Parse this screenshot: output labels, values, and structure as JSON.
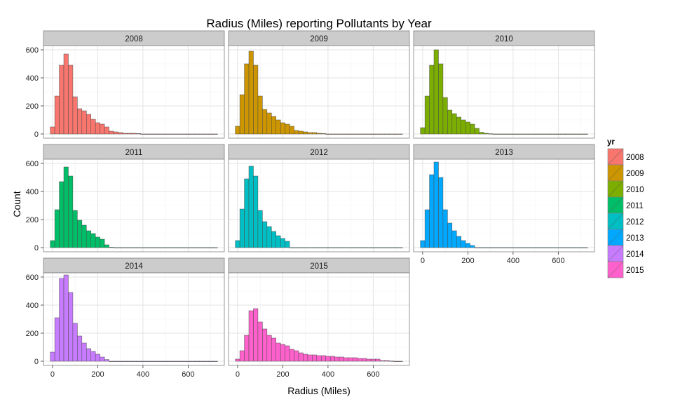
{
  "chart_data": {
    "type": "bar",
    "title": "Radius (Miles) reporting Pollutants by Year",
    "xlabel": "Radius (Miles)",
    "ylabel": "Count",
    "xlim": [
      -40,
      760
    ],
    "ylim": [
      -30,
      630
    ],
    "x_ticks": [
      0,
      200,
      400,
      600
    ],
    "y_ticks": [
      0,
      200,
      400,
      600
    ],
    "bin_width": 20,
    "bin_start": 0,
    "grid": true,
    "legend": {
      "title": "yr",
      "position": "right"
    },
    "panels": [
      {
        "label": "2008",
        "color": "#F8766D",
        "values": [
          50,
          270,
          490,
          570,
          490,
          265,
          180,
          165,
          140,
          105,
          80,
          70,
          50,
          20,
          15,
          10,
          5,
          5,
          5,
          3,
          0,
          0,
          0,
          0,
          0,
          0,
          0,
          0,
          0,
          0,
          0,
          0,
          0,
          0,
          0,
          0,
          0
        ]
      },
      {
        "label": "2009",
        "color": "#CD9600",
        "values": [
          55,
          280,
          500,
          590,
          490,
          270,
          175,
          150,
          125,
          100,
          80,
          70,
          55,
          25,
          20,
          15,
          10,
          10,
          5,
          3,
          0,
          0,
          0,
          0,
          0,
          0,
          0,
          0,
          0,
          0,
          0,
          0,
          0,
          0,
          0,
          0,
          0
        ]
      },
      {
        "label": "2010",
        "color": "#7CAE00",
        "values": [
          45,
          270,
          490,
          600,
          500,
          260,
          170,
          145,
          120,
          100,
          85,
          70,
          40,
          12,
          5,
          2,
          0,
          0,
          0,
          0,
          0,
          0,
          0,
          0,
          0,
          0,
          0,
          0,
          0,
          0,
          0,
          0,
          0,
          0,
          0,
          0,
          0
        ]
      },
      {
        "label": "2011",
        "color": "#00BE67",
        "values": [
          50,
          270,
          470,
          575,
          510,
          265,
          195,
          160,
          120,
          100,
          75,
          60,
          20,
          3,
          0,
          0,
          0,
          0,
          0,
          0,
          0,
          0,
          0,
          0,
          0,
          0,
          0,
          0,
          0,
          0,
          0,
          0,
          0,
          0,
          0,
          0,
          0
        ]
      },
      {
        "label": "2012",
        "color": "#00BFC4",
        "values": [
          50,
          275,
          490,
          580,
          510,
          265,
          185,
          150,
          115,
          85,
          65,
          45,
          0,
          0,
          0,
          0,
          0,
          0,
          0,
          0,
          0,
          0,
          0,
          0,
          0,
          0,
          0,
          0,
          0,
          0,
          0,
          0,
          0,
          0,
          0,
          0,
          0
        ]
      },
      {
        "label": "2013",
        "color": "#00A9FF",
        "values": [
          50,
          270,
          520,
          610,
          500,
          270,
          175,
          120,
          80,
          50,
          30,
          15,
          0,
          0,
          0,
          0,
          0,
          0,
          0,
          0,
          0,
          0,
          0,
          0,
          0,
          0,
          0,
          0,
          0,
          0,
          0,
          0,
          0,
          0,
          0,
          0,
          0
        ]
      },
      {
        "label": "2014",
        "color": "#C77CFF",
        "values": [
          65,
          310,
          590,
          615,
          490,
          270,
          180,
          130,
          90,
          70,
          50,
          30,
          12,
          0,
          0,
          0,
          0,
          0,
          0,
          0,
          0,
          0,
          0,
          0,
          0,
          0,
          0,
          0,
          0,
          0,
          0,
          0,
          0,
          0,
          0,
          0,
          0
        ]
      },
      {
        "label": "2015",
        "color": "#FF61CC",
        "values": [
          15,
          75,
          185,
          360,
          375,
          280,
          230,
          185,
          165,
          130,
          120,
          110,
          85,
          75,
          60,
          50,
          45,
          45,
          40,
          40,
          35,
          35,
          30,
          30,
          25,
          25,
          25,
          20,
          20,
          15,
          15,
          15,
          5,
          5,
          2,
          0,
          0
        ]
      }
    ]
  }
}
